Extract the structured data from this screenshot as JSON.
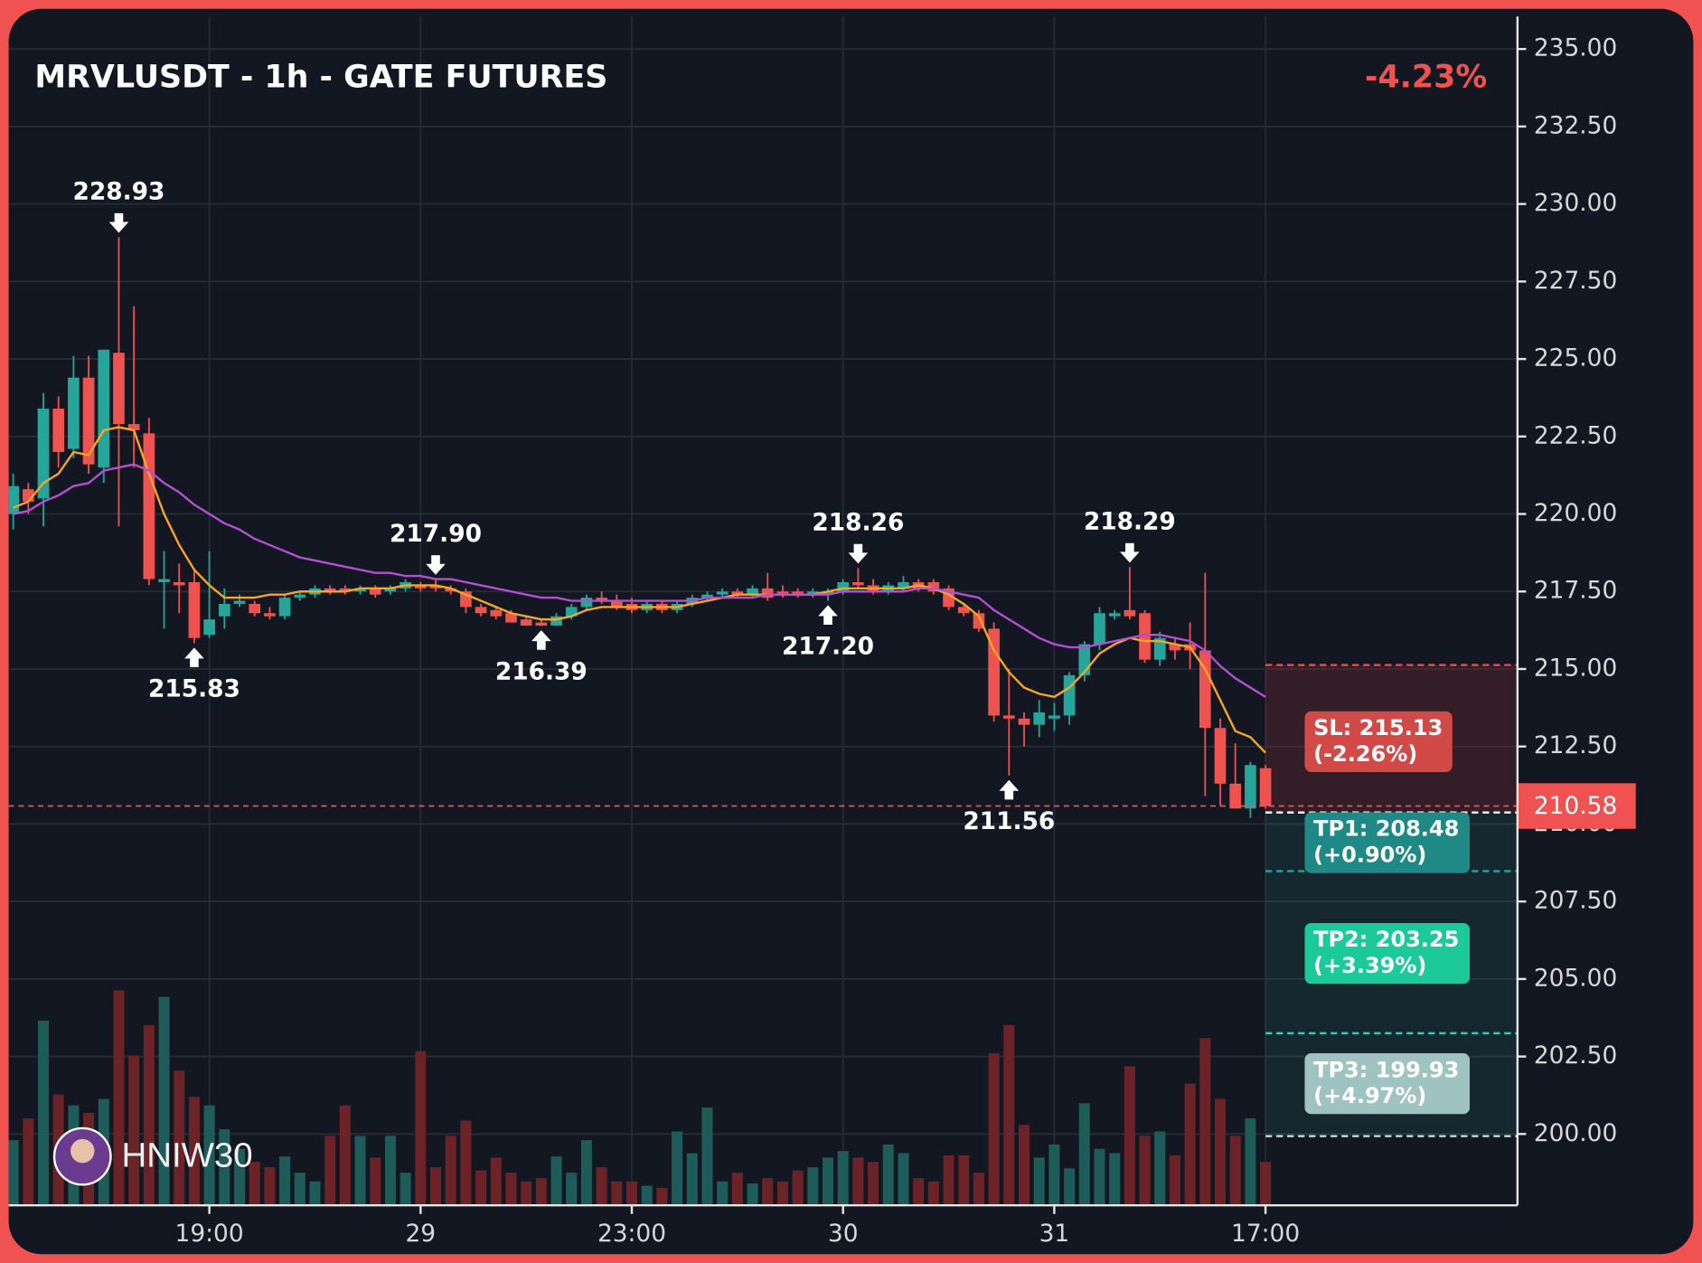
{
  "chart_data": {
    "type": "candlestick",
    "title": "MRVLUSDT - 1h - GATE FUTURES",
    "change": {
      "value": -4.23,
      "label": "-4.23%"
    },
    "watermark": "HNIW30",
    "up_color": "#26a69a",
    "down_color": "#ef5350",
    "xlim": [
      -0.3,
      99.7
    ],
    "xticks": [
      {
        "value": 13,
        "label": "19:00"
      },
      {
        "value": 27,
        "label": "29"
      },
      {
        "value": 41,
        "label": "23:00"
      },
      {
        "value": 55,
        "label": "30"
      },
      {
        "value": 69,
        "label": "31"
      },
      {
        "value": 83,
        "label": "17:00"
      }
    ],
    "ylim": [
      197.7,
      236.05
    ],
    "yticks": [
      {
        "value": 200,
        "label": "200.00"
      },
      {
        "value": 202.5,
        "label": "202.50"
      },
      {
        "value": 205,
        "label": "205.00"
      },
      {
        "value": 207.5,
        "label": "207.50"
      },
      {
        "value": 210,
        "label": "210.00"
      },
      {
        "value": 212.5,
        "label": "212.50"
      },
      {
        "value": 215,
        "label": "215.00"
      },
      {
        "value": 217.5,
        "label": "217.50"
      },
      {
        "value": 220,
        "label": "220.00"
      },
      {
        "value": 222.5,
        "label": "222.50"
      },
      {
        "value": 225,
        "label": "225.00"
      },
      {
        "value": 227.5,
        "label": "227.50"
      },
      {
        "value": 230,
        "label": "230.00"
      },
      {
        "value": 232.5,
        "label": "232.50"
      },
      {
        "value": 235,
        "label": "235.00"
      }
    ],
    "grid": true,
    "candles": [
      [
        220.0,
        221.3,
        219.5,
        220.9
      ],
      [
        220.8,
        221.0,
        220.0,
        220.4
      ],
      [
        220.5,
        223.9,
        219.6,
        223.4
      ],
      [
        223.4,
        223.8,
        221.5,
        222.0
      ],
      [
        222.1,
        225.1,
        221.8,
        224.4
      ],
      [
        224.4,
        225.1,
        221.3,
        221.6
      ],
      [
        221.5,
        225.3,
        221.0,
        225.3
      ],
      [
        225.2,
        228.93,
        219.6,
        222.9
      ],
      [
        222.9,
        226.7,
        221.5,
        222.7
      ],
      [
        222.6,
        223.1,
        217.7,
        217.9
      ],
      [
        217.8,
        218.8,
        216.3,
        217.9
      ],
      [
        217.8,
        218.4,
        216.8,
        217.7
      ],
      [
        217.8,
        218.2,
        215.83,
        216.0
      ],
      [
        216.1,
        218.8,
        216.0,
        216.6
      ],
      [
        216.7,
        217.6,
        216.3,
        217.1
      ],
      [
        217.1,
        217.4,
        217.0,
        217.2
      ],
      [
        217.1,
        217.2,
        216.7,
        216.8
      ],
      [
        216.8,
        217.0,
        216.6,
        216.7
      ],
      [
        216.7,
        217.4,
        216.6,
        217.3
      ],
      [
        217.3,
        217.5,
        217.2,
        217.4
      ],
      [
        217.4,
        217.7,
        217.3,
        217.6
      ],
      [
        217.6,
        217.7,
        217.4,
        217.5
      ],
      [
        217.6,
        217.7,
        217.4,
        217.5
      ],
      [
        217.5,
        217.7,
        217.4,
        217.6
      ],
      [
        217.6,
        217.7,
        217.3,
        217.4
      ],
      [
        217.5,
        217.7,
        217.4,
        217.6
      ],
      [
        217.6,
        217.9,
        217.5,
        217.8
      ],
      [
        217.7,
        217.8,
        217.5,
        217.6
      ],
      [
        217.7,
        217.9,
        217.5,
        217.6
      ],
      [
        217.6,
        217.7,
        217.4,
        217.5
      ],
      [
        217.5,
        217.6,
        216.8,
        217.0
      ],
      [
        217.0,
        217.1,
        216.7,
        216.8
      ],
      [
        216.9,
        217.0,
        216.6,
        216.7
      ],
      [
        216.8,
        216.9,
        216.5,
        216.5
      ],
      [
        216.6,
        216.7,
        216.4,
        216.4
      ],
      [
        216.5,
        216.6,
        216.39,
        216.4
      ],
      [
        216.4,
        216.8,
        216.39,
        216.7
      ],
      [
        216.7,
        217.1,
        216.6,
        217.0
      ],
      [
        217.0,
        217.4,
        216.9,
        217.3
      ],
      [
        217.3,
        217.5,
        217.1,
        217.2
      ],
      [
        217.2,
        217.4,
        216.9,
        217.0
      ],
      [
        217.1,
        217.3,
        216.8,
        216.9
      ],
      [
        216.9,
        217.2,
        216.8,
        217.1
      ],
      [
        217.1,
        217.2,
        216.8,
        216.9
      ],
      [
        216.9,
        217.2,
        216.8,
        217.1
      ],
      [
        217.1,
        217.4,
        217.0,
        217.3
      ],
      [
        217.3,
        217.5,
        217.2,
        217.4
      ],
      [
        217.4,
        217.6,
        217.3,
        217.5
      ],
      [
        217.5,
        217.6,
        217.3,
        217.4
      ],
      [
        217.4,
        217.7,
        217.3,
        217.6
      ],
      [
        217.6,
        218.1,
        217.2,
        217.3
      ],
      [
        217.5,
        217.7,
        217.3,
        217.4
      ],
      [
        217.5,
        217.6,
        217.3,
        217.4
      ],
      [
        217.4,
        217.6,
        217.3,
        217.5
      ],
      [
        217.4,
        217.6,
        217.2,
        217.5
      ],
      [
        217.5,
        217.9,
        217.4,
        217.8
      ],
      [
        217.8,
        218.26,
        217.6,
        217.7
      ],
      [
        217.7,
        217.9,
        217.4,
        217.5
      ],
      [
        217.5,
        217.8,
        217.4,
        217.7
      ],
      [
        217.6,
        218.0,
        217.5,
        217.8
      ],
      [
        217.8,
        217.9,
        217.5,
        217.6
      ],
      [
        217.8,
        217.9,
        217.4,
        217.5
      ],
      [
        217.6,
        217.7,
        216.9,
        217.0
      ],
      [
        217.0,
        217.1,
        216.7,
        216.8
      ],
      [
        216.8,
        216.9,
        216.2,
        216.3
      ],
      [
        216.3,
        216.5,
        213.3,
        213.5
      ],
      [
        213.5,
        215.0,
        211.56,
        213.4
      ],
      [
        213.4,
        213.6,
        212.5,
        213.2
      ],
      [
        213.2,
        214.0,
        212.8,
        213.6
      ],
      [
        213.4,
        213.9,
        213.0,
        213.5
      ],
      [
        213.5,
        214.9,
        213.2,
        214.8
      ],
      [
        214.8,
        215.9,
        214.6,
        215.8
      ],
      [
        215.8,
        217.0,
        215.6,
        216.8
      ],
      [
        216.7,
        216.9,
        216.6,
        216.8
      ],
      [
        216.9,
        218.29,
        216.6,
        216.7
      ],
      [
        216.8,
        216.9,
        215.2,
        215.3
      ],
      [
        215.3,
        216.2,
        215.1,
        216.0
      ],
      [
        215.8,
        216.0,
        215.3,
        215.6
      ],
      [
        215.8,
        216.5,
        215.0,
        215.6
      ],
      [
        215.6,
        218.1,
        210.9,
        213.1
      ],
      [
        213.1,
        213.4,
        210.6,
        211.3
      ],
      [
        211.3,
        212.6,
        210.5,
        210.5
      ],
      [
        210.5,
        212.0,
        210.2,
        211.9
      ],
      [
        211.8,
        211.9,
        210.5,
        210.58
      ]
    ],
    "volumes": [
      30,
      40,
      85,
      51,
      46,
      42.5,
      49,
      99,
      69,
      83,
      96,
      62,
      50,
      46,
      35,
      26,
      20,
      17.5,
      22.5,
      15,
      11,
      32,
      46,
      32,
      22,
      32,
      15,
      71,
      17.5,
      32,
      39,
      16,
      22,
      15,
      11,
      12.5,
      22.5,
      15,
      30,
      17.5,
      11,
      11,
      9,
      8,
      34,
      24,
      45,
      11,
      15,
      10,
      12.5,
      11,
      16,
      17.5,
      22,
      25,
      22,
      20,
      28,
      24,
      12.5,
      11,
      23,
      23,
      15,
      70,
      83,
      37,
      22,
      28,
      17,
      47,
      26,
      24,
      64,
      32,
      34,
      23,
      56,
      77,
      49,
      32,
      40,
      20
    ],
    "series": [
      {
        "color": "#f5a623",
        "values": [
          220.2,
          220.4,
          221.0,
          221.3,
          222.0,
          221.9,
          222.7,
          222.8,
          222.7,
          221.3,
          220.0,
          219.0,
          218.2,
          217.7,
          217.3,
          217.3,
          217.3,
          217.4,
          217.4,
          217.5,
          217.5,
          217.5,
          217.5,
          217.6,
          217.6,
          217.6,
          217.7,
          217.7,
          217.7,
          217.6,
          217.4,
          217.2,
          217.0,
          216.8,
          216.7,
          216.6,
          216.6,
          216.7,
          216.9,
          217.0,
          217.0,
          217.0,
          217.0,
          217.0,
          217.0,
          217.1,
          217.2,
          217.3,
          217.4,
          217.4,
          217.4,
          217.4,
          217.4,
          217.4,
          217.5,
          217.6,
          217.6,
          217.6,
          217.6,
          217.6,
          217.7,
          217.6,
          217.4,
          217.1,
          216.7,
          215.6,
          214.9,
          214.4,
          214.2,
          214.1,
          214.4,
          214.9,
          215.5,
          215.8,
          216.0,
          215.9,
          215.9,
          215.8,
          215.7,
          215.0,
          214.0,
          213.0,
          212.8,
          212.3
        ]
      },
      {
        "color": "#b44fd1",
        "values": [
          220.0,
          220.1,
          220.4,
          220.6,
          220.9,
          221.0,
          221.4,
          221.5,
          221.6,
          221.4,
          221.0,
          220.7,
          220.3,
          220.0,
          219.7,
          219.5,
          219.2,
          219.0,
          218.8,
          218.6,
          218.5,
          218.4,
          218.3,
          218.2,
          218.1,
          218.1,
          218.0,
          218.0,
          217.9,
          217.9,
          217.8,
          217.7,
          217.6,
          217.5,
          217.4,
          217.3,
          217.3,
          217.2,
          217.2,
          217.2,
          217.2,
          217.2,
          217.2,
          217.2,
          217.2,
          217.2,
          217.3,
          217.3,
          217.3,
          217.3,
          217.4,
          217.4,
          217.4,
          217.4,
          217.4,
          217.5,
          217.5,
          217.5,
          217.5,
          217.5,
          217.6,
          217.6,
          217.5,
          217.4,
          217.3,
          216.9,
          216.6,
          216.3,
          216.0,
          215.8,
          215.7,
          215.7,
          215.8,
          215.9,
          216.0,
          216.1,
          216.1,
          216.0,
          215.9,
          215.6,
          215.1,
          214.7,
          214.4,
          214.1
        ]
      }
    ],
    "annotations": [
      {
        "index": 7,
        "value": 228.93,
        "label": "228.93",
        "side": "above"
      },
      {
        "index": 12,
        "value": 215.83,
        "label": "215.83",
        "side": "below"
      },
      {
        "index": 28,
        "value": 217.9,
        "label": "217.90",
        "side": "above"
      },
      {
        "index": 35,
        "value": 216.39,
        "label": "216.39",
        "side": "below"
      },
      {
        "index": 56,
        "value": 218.26,
        "label": "218.26",
        "side": "above"
      },
      {
        "index": 54,
        "value": 217.2,
        "label": "217.20",
        "side": "below"
      },
      {
        "index": 74,
        "value": 218.29,
        "label": "218.29",
        "side": "above"
      },
      {
        "index": 66,
        "value": 211.56,
        "label": "211.56",
        "side": "below"
      }
    ],
    "last_price": 210.58,
    "entry": 210.37,
    "levels": [
      {
        "value": 215.13,
        "label": "SL: 215.13",
        "change": "(-2.26%)",
        "color": "#d24a48",
        "line_color": "#e05252"
      },
      {
        "value": 208.48,
        "label": "TP1: 208.48",
        "change": "(+0.90%)",
        "color": "#1f8a85",
        "line_color": "#26a69a"
      },
      {
        "value": 203.25,
        "label": "TP2: 203.25",
        "change": "(+3.39%)",
        "color": "#1cc99a",
        "line_color": "#2ad1b0"
      },
      {
        "value": 199.93,
        "label": "TP3: 199.93",
        "change": "(+4.97%)",
        "color": "#9ec3c0",
        "line_color": "#c8d6d6"
      }
    ]
  }
}
